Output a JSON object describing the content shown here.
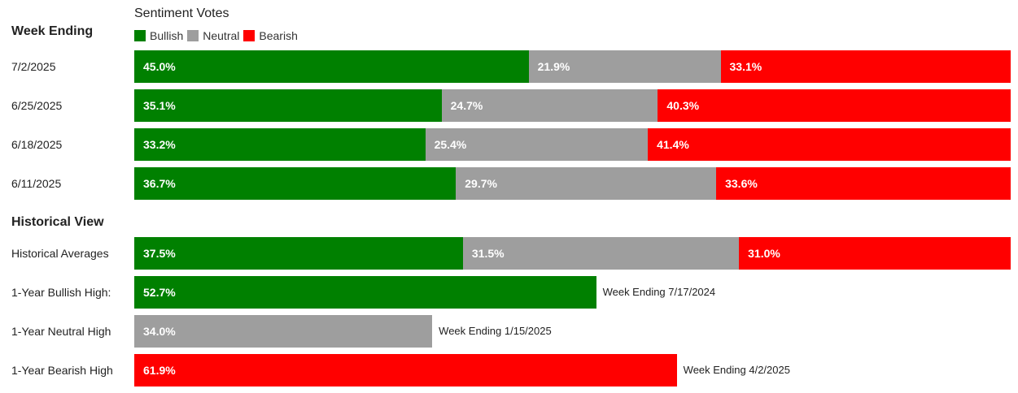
{
  "legend": {
    "title": "Sentiment Votes",
    "items": [
      {
        "label": "Bullish",
        "color": "#008000"
      },
      {
        "label": "Neutral",
        "color": "#9e9e9e"
      },
      {
        "label": "Bearish",
        "color": "#ff0000"
      }
    ]
  },
  "sections": {
    "weekly": "Week Ending",
    "historical": "Historical View"
  },
  "chart_data": [
    {
      "type": "bar",
      "stacked": true,
      "orientation": "horizontal",
      "title": "",
      "categories": [
        "7/2/2025",
        "6/25/2025",
        "6/18/2025",
        "6/11/2025",
        "Historical Averages"
      ],
      "series": [
        {
          "name": "Bullish",
          "values": [
            45.0,
            35.1,
            33.2,
            36.7,
            37.5
          ],
          "labels": [
            "45.0%",
            "35.1%",
            "33.2%",
            "36.7%",
            "37.5%"
          ]
        },
        {
          "name": "Neutral",
          "values": [
            21.9,
            24.7,
            25.4,
            29.7,
            31.5
          ],
          "labels": [
            "21.9%",
            "24.7%",
            "25.4%",
            "29.7%",
            "31.5%"
          ]
        },
        {
          "name": "Bearish",
          "values": [
            33.1,
            40.3,
            41.4,
            33.6,
            31.0
          ],
          "labels": [
            "33.1%",
            "40.3%",
            "41.4%",
            "33.6%",
            "31.0%"
          ]
        }
      ],
      "xlim": [
        0,
        100
      ]
    },
    {
      "type": "bar",
      "orientation": "horizontal",
      "title": "",
      "categories": [
        "1-Year Bullish High:",
        "1-Year Neutral High",
        "1-Year Bearish High"
      ],
      "values": [
        52.7,
        34.0,
        61.9
      ],
      "labels": [
        "52.7%",
        "34.0%",
        "61.9%"
      ],
      "series_names": [
        "Bullish",
        "Neutral",
        "Bearish"
      ],
      "notes": [
        "Week Ending 7/17/2024",
        "Week Ending 1/15/2025",
        "Week Ending 4/2/2025"
      ],
      "xlim": [
        0,
        100
      ]
    }
  ]
}
